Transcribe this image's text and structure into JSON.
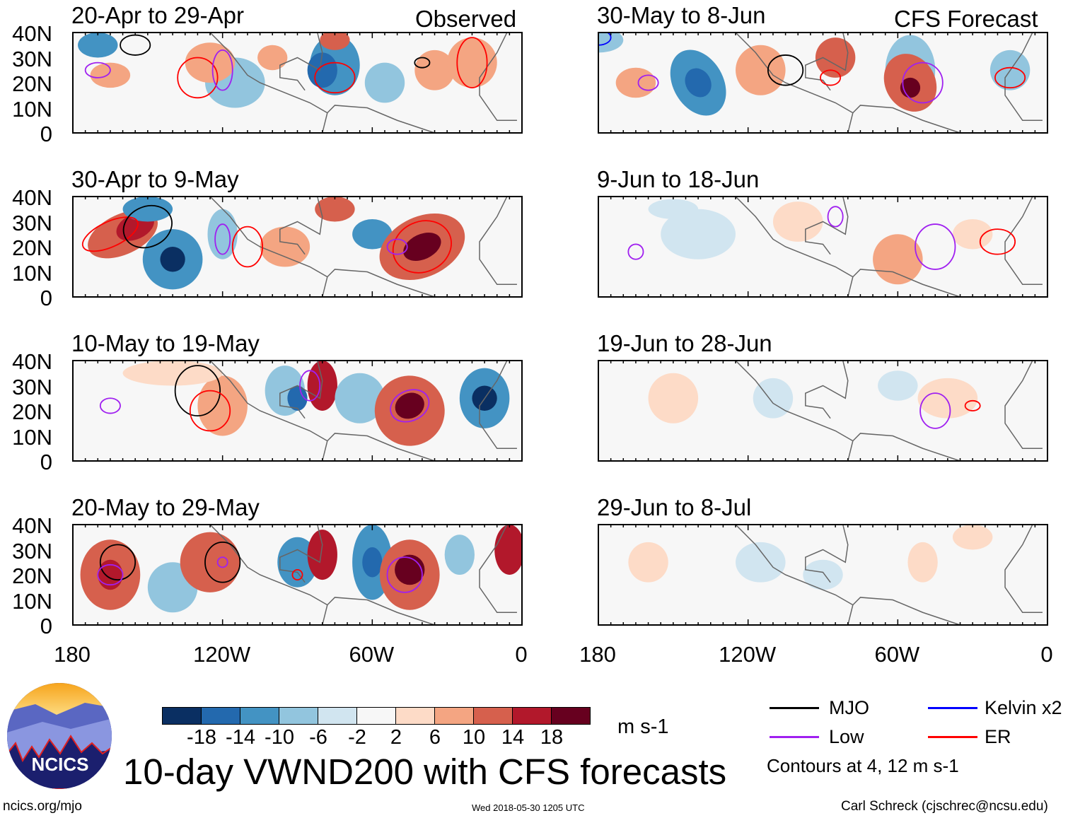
{
  "header": {
    "observed_label": "Observed",
    "forecast_label": "CFS Forecast"
  },
  "panels": [
    {
      "title": "20-Apr to 29-Apr",
      "column": "observed"
    },
    {
      "title": "30-Apr to 9-May",
      "column": "observed"
    },
    {
      "title": "10-May to 19-May",
      "column": "observed"
    },
    {
      "title": "20-May to 29-May",
      "column": "observed"
    },
    {
      "title": "30-May to 8-Jun",
      "column": "forecast"
    },
    {
      "title": "9-Jun to 18-Jun",
      "column": "forecast"
    },
    {
      "title": "19-Jun to 28-Jun",
      "column": "forecast"
    },
    {
      "title": "29-Jun to 8-Jul",
      "column": "forecast"
    }
  ],
  "axes": {
    "lat_labels": [
      "40N",
      "30N",
      "20N",
      "10N",
      "0"
    ],
    "lon_labels": [
      "180",
      "120W",
      "60W",
      "0"
    ]
  },
  "colorbar": {
    "colors": [
      "#0a2f62",
      "#2369ae",
      "#4393c3",
      "#92c5de",
      "#d1e5f0",
      "#f7f7f7",
      "#fddbc7",
      "#f4a582",
      "#d6604d",
      "#b2182b",
      "#67001f"
    ],
    "tick_labels": [
      "-18",
      "-14",
      "-10",
      "-6",
      "-2",
      "2",
      "6",
      "10",
      "14",
      "18"
    ],
    "units": "m s-1"
  },
  "legend": {
    "items": [
      {
        "label": "MJO",
        "color": "#000000"
      },
      {
        "label": "Kelvin x2",
        "color": "#0000ff"
      },
      {
        "label": "Low",
        "color": "#a020f0"
      },
      {
        "label": "ER",
        "color": "#ff0000"
      }
    ],
    "contour_note": "Contours at 4, 12 m s-1"
  },
  "footer": {
    "title": "10-day VWND200 with CFS forecasts",
    "logo_text": "NCICS",
    "url": "ncics.org/mjo",
    "timestamp": "Wed 2018-05-30 1205 UTC",
    "author": "Carl Schreck (cjschrec@ncsu.edu)"
  }
}
